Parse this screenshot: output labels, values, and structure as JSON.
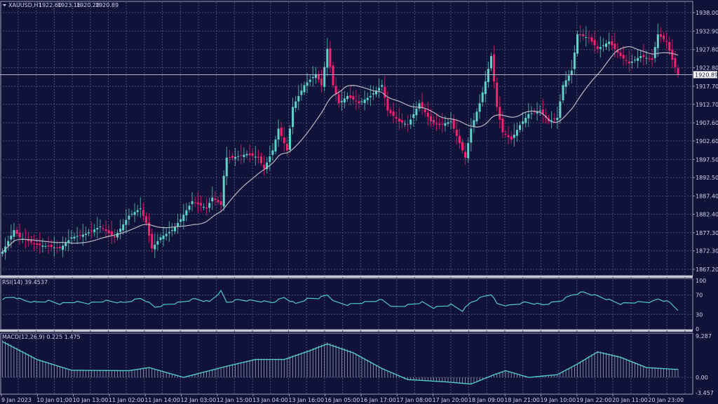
{
  "header": {
    "symbol": "XAUUSD,H1",
    "open": "1922.60",
    "high": "1923.16",
    "low": "1920.28",
    "close": "1920.89"
  },
  "colors": {
    "background": "#10123a",
    "bull": "#5fd3c8",
    "bear": "#ff1f6e",
    "ma": "#b8b8c0",
    "indicator": "#4fc9c9",
    "grid": "#4a4f72"
  },
  "chart_data": {
    "type": "candlestick",
    "price": {
      "ticks": [
        "1938.00",
        "1932.90",
        "1927.80",
        "1922.80",
        "1917.70",
        "1912.70",
        "1907.60",
        "1902.60",
        "1897.50",
        "1892.50",
        "1887.40",
        "1882.40",
        "1877.30",
        "1872.30",
        "1867.20"
      ],
      "ylim": [
        1867.2,
        1938.0
      ],
      "last_price": "1920.89",
      "close_points_by_bar": [
        [
          0,
          1872
        ],
        [
          4,
          1878
        ],
        [
          6,
          1876
        ],
        [
          12,
          1874
        ],
        [
          20,
          1873
        ],
        [
          24,
          1876
        ],
        [
          29,
          1877
        ],
        [
          34,
          1879
        ],
        [
          39,
          1876
        ],
        [
          44,
          1882
        ],
        [
          48,
          1884
        ],
        [
          50,
          1880
        ],
        [
          52,
          1873
        ],
        [
          55,
          1876
        ],
        [
          59,
          1878
        ],
        [
          62,
          1881
        ],
        [
          66,
          1886
        ],
        [
          71,
          1884
        ],
        [
          73,
          1887
        ],
        [
          76,
          1885
        ],
        [
          77,
          1893
        ],
        [
          78,
          1898
        ],
        [
          80,
          1898
        ],
        [
          85,
          1899
        ],
        [
          89,
          1898
        ],
        [
          91,
          1895
        ],
        [
          94,
          1900
        ],
        [
          96,
          1906
        ],
        [
          99,
          1900
        ],
        [
          101,
          1912
        ],
        [
          105,
          1918
        ],
        [
          109,
          1921
        ],
        [
          111,
          1918
        ],
        [
          113,
          1928
        ],
        [
          115,
          1918
        ],
        [
          117,
          1913
        ],
        [
          120,
          1915
        ],
        [
          124,
          1913
        ],
        [
          128,
          1915
        ],
        [
          132,
          1918
        ],
        [
          134,
          1911
        ],
        [
          138,
          1908
        ],
        [
          141,
          1907
        ],
        [
          145,
          1913
        ],
        [
          149,
          1908
        ],
        [
          152,
          1907
        ],
        [
          156,
          1908
        ],
        [
          160,
          1900
        ],
        [
          161,
          1898
        ],
        [
          163,
          1906
        ],
        [
          166,
          1913
        ],
        [
          168,
          1919
        ],
        [
          170,
          1926
        ],
        [
          172,
          1912
        ],
        [
          174,
          1905
        ],
        [
          177,
          1903
        ],
        [
          180,
          1907
        ],
        [
          183,
          1910
        ],
        [
          187,
          1911
        ],
        [
          190,
          1908
        ],
        [
          193,
          1909
        ],
        [
          195,
          1918
        ],
        [
          198,
          1922
        ],
        [
          200,
          1932
        ],
        [
          204,
          1931
        ],
        [
          207,
          1928
        ],
        [
          211,
          1930
        ],
        [
          215,
          1926
        ],
        [
          218,
          1924
        ],
        [
          222,
          1926
        ],
        [
          226,
          1925
        ],
        [
          228,
          1932
        ],
        [
          231,
          1930
        ],
        [
          233,
          1925
        ],
        [
          235,
          1920.89
        ]
      ],
      "ma_period": 20
    },
    "rsi": {
      "label": "RSI(14) 39.4537",
      "ticks": [
        "100",
        "70",
        "30",
        "0"
      ],
      "ylim": [
        0,
        100
      ],
      "points_by_bar": [
        [
          0,
          62
        ],
        [
          4,
          66
        ],
        [
          8,
          58
        ],
        [
          12,
          55
        ],
        [
          16,
          58
        ],
        [
          20,
          52
        ],
        [
          25,
          56
        ],
        [
          30,
          53
        ],
        [
          36,
          58
        ],
        [
          42,
          54
        ],
        [
          48,
          63
        ],
        [
          50,
          58
        ],
        [
          53,
          45
        ],
        [
          57,
          50
        ],
        [
          62,
          55
        ],
        [
          67,
          62
        ],
        [
          72,
          56
        ],
        [
          76,
          78
        ],
        [
          78,
          55
        ],
        [
          82,
          60
        ],
        [
          88,
          58
        ],
        [
          94,
          55
        ],
        [
          98,
          65
        ],
        [
          102,
          52
        ],
        [
          106,
          62
        ],
        [
          110,
          64
        ],
        [
          113,
          70
        ],
        [
          116,
          55
        ],
        [
          120,
          50
        ],
        [
          126,
          55
        ],
        [
          132,
          60
        ],
        [
          136,
          45
        ],
        [
          140,
          48
        ],
        [
          146,
          55
        ],
        [
          150,
          44
        ],
        [
          156,
          50
        ],
        [
          160,
          38
        ],
        [
          163,
          55
        ],
        [
          167,
          66
        ],
        [
          170,
          72
        ],
        [
          172,
          52
        ],
        [
          176,
          48
        ],
        [
          182,
          55
        ],
        [
          188,
          50
        ],
        [
          194,
          58
        ],
        [
          198,
          70
        ],
        [
          202,
          76
        ],
        [
          207,
          68
        ],
        [
          211,
          60
        ],
        [
          215,
          52
        ],
        [
          220,
          55
        ],
        [
          226,
          56
        ],
        [
          228,
          62
        ],
        [
          232,
          55
        ],
        [
          235,
          39.45
        ]
      ]
    },
    "macd": {
      "label": "MACD(12,26,9) 0.225 1.475",
      "ticks": [
        "9.287",
        "0.00",
        "-3.457"
      ],
      "ylim": [
        -3.457,
        9.287
      ],
      "points_by_bar": [
        [
          0,
          8
        ],
        [
          12,
          4
        ],
        [
          24,
          1.6
        ],
        [
          44,
          1.5
        ],
        [
          51,
          2.2
        ],
        [
          63,
          0
        ],
        [
          78,
          2.5
        ],
        [
          88,
          4
        ],
        [
          98,
          4
        ],
        [
          107,
          6
        ],
        [
          113,
          7.5
        ],
        [
          122,
          5.5
        ],
        [
          132,
          2
        ],
        [
          141,
          -0.5
        ],
        [
          154,
          -1
        ],
        [
          163,
          -1.5
        ],
        [
          171,
          0.6
        ],
        [
          175,
          1.5
        ],
        [
          183,
          0
        ],
        [
          193,
          0.6
        ],
        [
          200,
          3
        ],
        [
          207,
          5.7
        ],
        [
          215,
          4.5
        ],
        [
          224,
          2.2
        ],
        [
          234,
          1.8
        ]
      ]
    },
    "time_labels": [
      "9 Jan 2023",
      "10 Jan 01:00",
      "10 Jan 13:00",
      "11 Jan 02:00",
      "11 Jan 14:00",
      "12 Jan 03:00",
      "12 Jan 15:00",
      "13 Jan 04:00",
      "13 Jan 16:00",
      "16 Jan 05:00",
      "16 Jan 17:00",
      "17 Jan 08:00",
      "17 Jan 20:00",
      "18 Jan 09:00",
      "18 Jan 21:00",
      "19 Jan 10:00",
      "19 Jan 22:00",
      "20 Jan 11:00",
      "20 Jan 23:00"
    ]
  }
}
